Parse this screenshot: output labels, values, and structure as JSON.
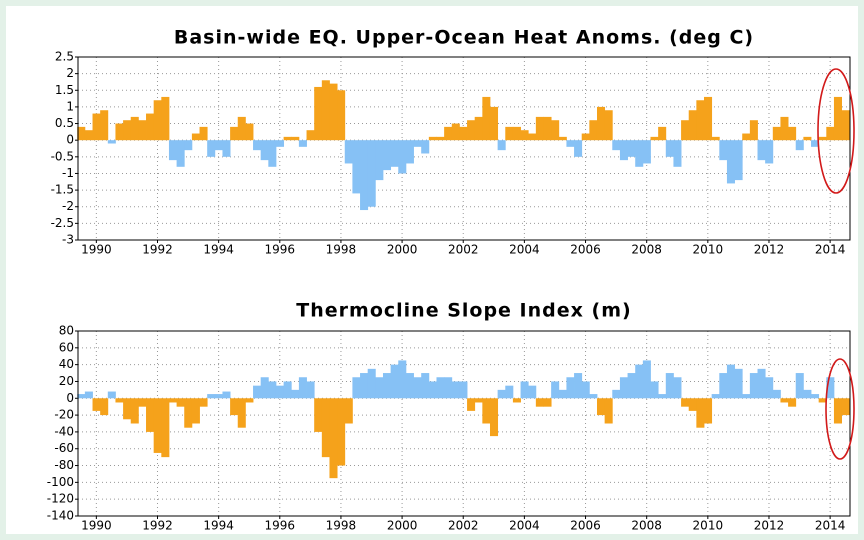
{
  "chart_data": [
    {
      "type": "bar",
      "title": "Basin-wide EQ. Upper-Ocean Heat Anoms. (deg C)",
      "pos_color": "#f5a21b",
      "neg_color": "#86c1f5",
      "grid": true,
      "xlim": [
        1989.4,
        2014.65
      ],
      "xticks": [
        1990,
        1992,
        1994,
        1996,
        1998,
        2000,
        2002,
        2004,
        2006,
        2008,
        2010,
        2012,
        2014
      ],
      "ylim": [
        -3,
        2.5
      ],
      "yticks": [
        2.5,
        2,
        1.5,
        1,
        0.5,
        0,
        -0.5,
        -1,
        -1.5,
        -2,
        -2.5,
        -3
      ],
      "x": [
        1989.5,
        1989.75,
        1990,
        1990.25,
        1990.5,
        1990.75,
        1991,
        1991.25,
        1991.5,
        1991.75,
        1992,
        1992.25,
        1992.5,
        1992.75,
        1993,
        1993.25,
        1993.5,
        1993.75,
        1994,
        1994.25,
        1994.5,
        1994.75,
        1995,
        1995.25,
        1995.5,
        1995.75,
        1996,
        1996.25,
        1996.5,
        1996.75,
        1997,
        1997.25,
        1997.5,
        1997.75,
        1998,
        1998.25,
        1998.5,
        1998.75,
        1999,
        1999.25,
        1999.5,
        1999.75,
        2000,
        2000.25,
        2000.5,
        2000.75,
        2001,
        2001.25,
        2001.5,
        2001.75,
        2002,
        2002.25,
        2002.5,
        2002.75,
        2003,
        2003.25,
        2003.5,
        2003.75,
        2004,
        2004.25,
        2004.5,
        2004.75,
        2005,
        2005.25,
        2005.5,
        2005.75,
        2006,
        2006.25,
        2006.5,
        2006.75,
        2007,
        2007.25,
        2007.5,
        2007.75,
        2008,
        2008.25,
        2008.5,
        2008.75,
        2009,
        2009.25,
        2009.5,
        2009.75,
        2010,
        2010.25,
        2010.5,
        2010.75,
        2011,
        2011.25,
        2011.5,
        2011.75,
        2012,
        2012.25,
        2012.5,
        2012.75,
        2013,
        2013.25,
        2013.5,
        2013.75,
        2014,
        2014.25,
        2014.5
      ],
      "values": [
        0.4,
        0.3,
        0.8,
        0.9,
        -0.1,
        0.5,
        0.6,
        0.7,
        0.6,
        0.8,
        1.2,
        1.3,
        -0.6,
        -0.8,
        -0.3,
        0.2,
        0.4,
        -0.5,
        -0.3,
        -0.5,
        0.4,
        0.7,
        0.5,
        -0.3,
        -0.6,
        -0.8,
        -0.2,
        0.1,
        0.1,
        -0.2,
        0.3,
        1.6,
        1.8,
        1.7,
        1.5,
        -0.7,
        -1.6,
        -2.1,
        -2.0,
        -1.2,
        -0.9,
        -0.8,
        -1.0,
        -0.7,
        -0.2,
        -0.4,
        0.1,
        0.1,
        0.4,
        0.5,
        0.4,
        0.6,
        0.7,
        1.3,
        1.0,
        -0.3,
        0.4,
        0.4,
        0.3,
        0.2,
        0.7,
        0.7,
        0.6,
        0.1,
        -0.2,
        -0.5,
        0.2,
        0.6,
        1.0,
        0.9,
        -0.3,
        -0.6,
        -0.5,
        -0.8,
        -0.7,
        0.1,
        0.4,
        -0.5,
        -0.8,
        0.6,
        0.9,
        1.2,
        1.3,
        0.1,
        -0.6,
        -1.3,
        -1.2,
        0.2,
        0.6,
        -0.6,
        -0.7,
        0.4,
        0.7,
        0.4,
        -0.3,
        0.1,
        -0.2,
        0.1,
        0.4,
        1.3,
        0.9
      ]
    },
    {
      "type": "bar",
      "title": "Thermocline Slope Index (m)",
      "pos_color": "#86c1f5",
      "neg_color": "#f5a21b",
      "grid": true,
      "xlim": [
        1989.4,
        2014.65
      ],
      "xticks": [
        1990,
        1992,
        1994,
        1996,
        1998,
        2000,
        2002,
        2004,
        2006,
        2008,
        2010,
        2012,
        2014
      ],
      "ylim": [
        -140,
        80
      ],
      "yticks": [
        80,
        60,
        40,
        20,
        0,
        -20,
        -40,
        -60,
        -80,
        -100,
        -120,
        -140
      ],
      "x": [
        1989.5,
        1989.75,
        1990,
        1990.25,
        1990.5,
        1990.75,
        1991,
        1991.25,
        1991.5,
        1991.75,
        1992,
        1992.25,
        1992.5,
        1992.75,
        1993,
        1993.25,
        1993.5,
        1993.75,
        1994,
        1994.25,
        1994.5,
        1994.75,
        1995,
        1995.25,
        1995.5,
        1995.75,
        1996,
        1996.25,
        1996.5,
        1996.75,
        1997,
        1997.25,
        1997.5,
        1997.75,
        1998,
        1998.25,
        1998.5,
        1998.75,
        1999,
        1999.25,
        1999.5,
        1999.75,
        2000,
        2000.25,
        2000.5,
        2000.75,
        2001,
        2001.25,
        2001.5,
        2001.75,
        2002,
        2002.25,
        2002.5,
        2002.75,
        2003,
        2003.25,
        2003.5,
        2003.75,
        2004,
        2004.25,
        2004.5,
        2004.75,
        2005,
        2005.25,
        2005.5,
        2005.75,
        2006,
        2006.25,
        2006.5,
        2006.75,
        2007,
        2007.25,
        2007.5,
        2007.75,
        2008,
        2008.25,
        2008.5,
        2008.75,
        2009,
        2009.25,
        2009.5,
        2009.75,
        2010,
        2010.25,
        2010.5,
        2010.75,
        2011,
        2011.25,
        2011.5,
        2011.75,
        2012,
        2012.25,
        2012.5,
        2012.75,
        2013,
        2013.25,
        2013.5,
        2013.75,
        2014,
        2014.25,
        2014.5
      ],
      "values": [
        5,
        8,
        -15,
        -20,
        8,
        -5,
        -25,
        -30,
        -10,
        -40,
        -65,
        -70,
        -5,
        -10,
        -35,
        -30,
        -10,
        5,
        5,
        8,
        -20,
        -35,
        -5,
        15,
        25,
        20,
        15,
        20,
        10,
        25,
        20,
        -40,
        -70,
        -95,
        -80,
        -30,
        25,
        30,
        35,
        25,
        30,
        40,
        45,
        30,
        25,
        30,
        20,
        25,
        25,
        20,
        20,
        -15,
        -5,
        -30,
        -45,
        10,
        15,
        -5,
        20,
        15,
        -10,
        -10,
        20,
        10,
        25,
        30,
        20,
        5,
        -20,
        -30,
        10,
        25,
        30,
        40,
        45,
        20,
        5,
        30,
        25,
        -10,
        -15,
        -35,
        -30,
        5,
        30,
        40,
        35,
        5,
        30,
        35,
        25,
        10,
        -5,
        -10,
        30,
        10,
        5,
        -5,
        25,
        -30,
        -20
      ]
    }
  ]
}
